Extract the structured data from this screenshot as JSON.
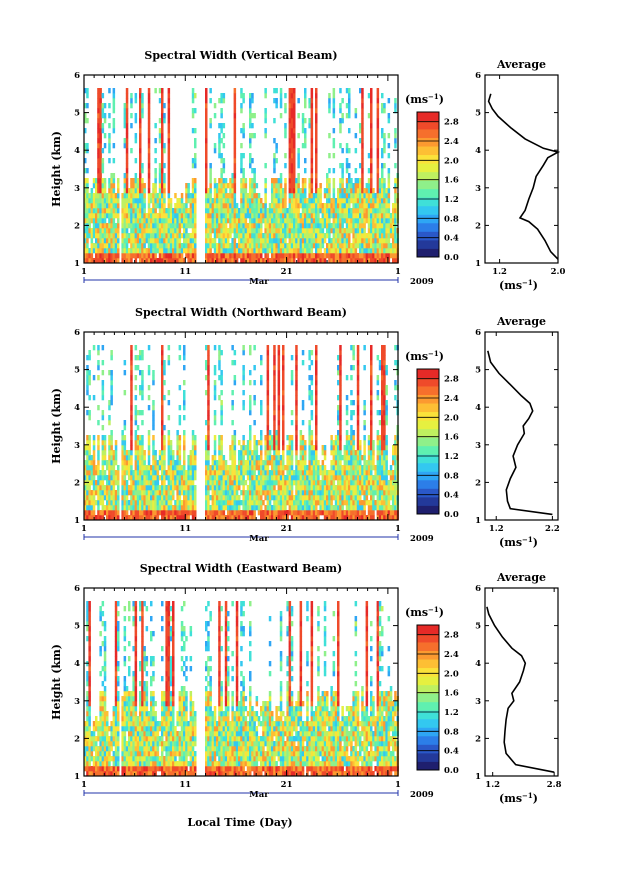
{
  "figure": {
    "xlabel": "Local Time (Day)",
    "month_label": "Mar",
    "year_label": "2009",
    "colorbar_unit": "(ms",
    "unit_exp": "−1",
    "avg_xlabel": "(ms",
    "avg_title": "Average"
  },
  "colormap": [
    "#1f1f6e",
    "#23399a",
    "#2a58c8",
    "#2c7ee8",
    "#2ea6f4",
    "#33c8f0",
    "#3fe0d8",
    "#5ff0b0",
    "#8ff08a",
    "#bff060",
    "#e6f040",
    "#fbe23a",
    "#fdbf34",
    "#fc9a30",
    "#f66f2c",
    "#ef4a2a",
    "#e62a27"
  ],
  "chart_data": [
    {
      "type": "heatmap",
      "title": "Spectral Width (Vertical Beam)",
      "ylabel": "Height (km)",
      "x_ticks": [
        "1",
        "11",
        "21",
        "1"
      ],
      "y_ticks": [
        "1",
        "2",
        "3",
        "4",
        "5",
        "6"
      ],
      "ylim": [
        1,
        6
      ],
      "xlim_days": [
        1,
        32
      ],
      "colorbar_ticks": [
        "0.0",
        "0.4",
        "0.8",
        "1.2",
        "1.6",
        "2.0",
        "2.4",
        "2.8"
      ],
      "colorbar_range": [
        0.0,
        3.0
      ],
      "data_top_km": 5.6,
      "seed": 11,
      "average": {
        "title": "Average",
        "xticks": [
          "1.2",
          "2.0"
        ],
        "xlim": [
          1.0,
          2.0
        ],
        "ylim": [
          1,
          6
        ],
        "height": [
          1.1,
          1.3,
          1.6,
          1.9,
          2.1,
          2.2,
          2.4,
          2.7,
          3.0,
          3.3,
          3.6,
          3.8,
          3.95,
          4.05,
          4.3,
          4.6,
          4.9,
          5.1,
          5.3,
          5.5
        ],
        "value": [
          2.0,
          1.9,
          1.82,
          1.72,
          1.6,
          1.48,
          1.55,
          1.6,
          1.66,
          1.7,
          1.8,
          1.86,
          2.0,
          1.8,
          1.55,
          1.35,
          1.18,
          1.1,
          1.05,
          1.08
        ]
      }
    },
    {
      "type": "heatmap",
      "title": "Spectral Width (Northward Beam)",
      "ylabel": "Height (km)",
      "x_ticks": [
        "1",
        "11",
        "21",
        "1"
      ],
      "y_ticks": [
        "1",
        "2",
        "3",
        "4",
        "5",
        "6"
      ],
      "ylim": [
        1,
        6
      ],
      "xlim_days": [
        1,
        32
      ],
      "colorbar_ticks": [
        "0.0",
        "0.4",
        "0.8",
        "1.2",
        "1.6",
        "2.0",
        "2.4",
        "2.8"
      ],
      "colorbar_range": [
        0.0,
        3.0
      ],
      "data_top_km": 5.6,
      "seed": 23,
      "average": {
        "title": "Average",
        "xticks": [
          "1.2",
          "2.2"
        ],
        "xlim": [
          1.0,
          2.3
        ],
        "ylim": [
          1,
          6
        ],
        "height": [
          1.15,
          1.3,
          1.5,
          1.8,
          2.1,
          2.4,
          2.7,
          3.0,
          3.3,
          3.5,
          3.7,
          3.9,
          4.1,
          4.3,
          4.6,
          4.9,
          5.2,
          5.5
        ],
        "value": [
          2.2,
          1.45,
          1.4,
          1.38,
          1.45,
          1.55,
          1.5,
          1.58,
          1.7,
          1.68,
          1.78,
          1.85,
          1.8,
          1.65,
          1.45,
          1.25,
          1.1,
          1.05
        ]
      }
    },
    {
      "type": "heatmap",
      "title": "Spectral Width (Eastward Beam)",
      "ylabel": "Height (km)",
      "x_ticks": [
        "1",
        "11",
        "21",
        "1"
      ],
      "y_ticks": [
        "1",
        "2",
        "3",
        "4",
        "5",
        "6"
      ],
      "ylim": [
        1,
        6
      ],
      "xlim_days": [
        1,
        32
      ],
      "colorbar_ticks": [
        "0.0",
        "0.4",
        "0.8",
        "1.2",
        "1.6",
        "2.0",
        "2.4",
        "2.8"
      ],
      "colorbar_range": [
        0.0,
        3.0
      ],
      "data_top_km": 5.6,
      "seed": 37,
      "average": {
        "title": "Average",
        "xticks": [
          "1.2",
          "2.8"
        ],
        "xlim": [
          1.0,
          2.9
        ],
        "ylim": [
          1,
          6
        ],
        "height": [
          1.1,
          1.3,
          1.6,
          1.9,
          2.2,
          2.5,
          2.8,
          3.0,
          3.2,
          3.5,
          3.8,
          4.0,
          4.2,
          4.4,
          4.7,
          5.0,
          5.3,
          5.5
        ],
        "value": [
          2.8,
          1.8,
          1.55,
          1.5,
          1.52,
          1.55,
          1.6,
          1.75,
          1.7,
          1.9,
          2.0,
          2.05,
          1.95,
          1.7,
          1.45,
          1.25,
          1.1,
          1.05
        ]
      }
    }
  ]
}
